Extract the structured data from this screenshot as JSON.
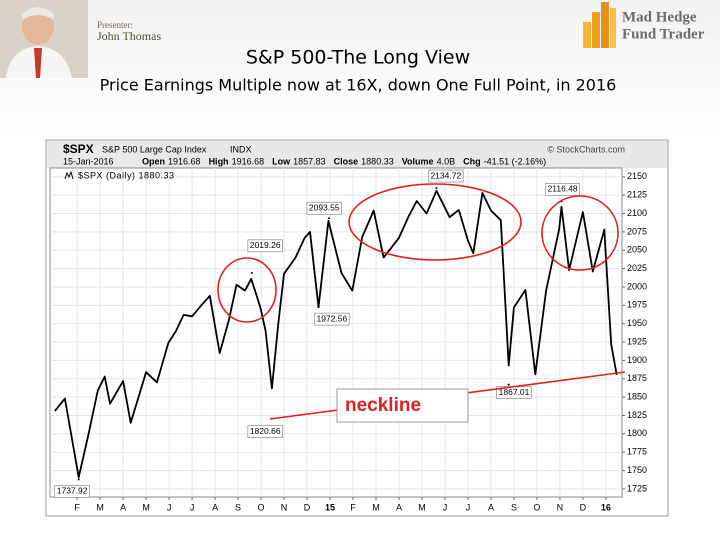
{
  "slide": {
    "presenter_label": "Presenter:",
    "presenter_name": "John Thomas",
    "logo_line1": "Mad Hedge",
    "logo_line2": "Fund Trader",
    "title": "S&P 500-The Long View",
    "subtitle": "Price Earnings Multiple now at 16X, down One Full Point, in 2016",
    "callout": "neckline"
  },
  "chart_data": {
    "type": "line",
    "symbol": "$SPX",
    "name": "S&P 500 Large Cap Index",
    "exchange": "INDX",
    "source": "© StockCharts.com",
    "date": "15-Jan-2016",
    "quote": [
      {
        "label": "Open",
        "value": "1916.68"
      },
      {
        "label": "High",
        "value": "1916.68"
      },
      {
        "label": "Low",
        "value": "1857.83"
      },
      {
        "label": "Close",
        "value": "1880.33"
      },
      {
        "label": "Volume",
        "value": "4.0B"
      },
      {
        "label": "Chg",
        "value": "-41.51 (-2.16%)"
      }
    ],
    "series": [
      {
        "name": "$SPX (Daily) 1880.33",
        "color": "#000000",
        "x": [
          0.03,
          0.47,
          1.07,
          1.5,
          1.9,
          2.2,
          2.43,
          3.0,
          3.33,
          4.0,
          4.47,
          4.97,
          5.3,
          5.63,
          6.0,
          6.4,
          6.77,
          7.2,
          7.6,
          7.93,
          8.3,
          8.57,
          8.97,
          9.2,
          9.47,
          9.75,
          10.0,
          10.5,
          10.9,
          11.13,
          11.5,
          11.93,
          12.5,
          12.97,
          13.4,
          13.9,
          14.33,
          15.0,
          15.4,
          15.77,
          16.2,
          16.63,
          17.2,
          17.6,
          18.0,
          18.23,
          18.63,
          19.0,
          19.43,
          19.77,
          20.0,
          20.5,
          20.93,
          21.4,
          21.97,
          22.07,
          22.4,
          23.0,
          23.43,
          23.93,
          24.23,
          24.47
        ],
        "values": [
          1831,
          1848,
          1741,
          1800,
          1859,
          1878,
          1841,
          1872,
          1815,
          1884,
          1870,
          1924,
          1940,
          1962,
          1960,
          1975,
          1988,
          1910,
          1955,
          2003,
          1995,
          2011,
          1972,
          1940,
          1862,
          1950,
          2018,
          2040,
          2067,
          2075,
          1972.56,
          2090,
          2019,
          1995,
          2068,
          2104,
          2040,
          2067,
          2095,
          2117,
          2100,
          2131,
          2095,
          2105,
          2063,
          2046,
          2128,
          2104,
          2091,
          1893,
          1972,
          1996,
          1881,
          1995,
          2079,
          2109,
          2023,
          2102,
          2021,
          2078,
          1922,
          1880.33
        ]
      }
    ],
    "annotations": [
      {
        "x": 1.07,
        "value": 1737.92
      },
      {
        "x": 9.47,
        "value": 1820.66
      },
      {
        "x": 8.6,
        "value": 2019.26
      },
      {
        "x": 11.5,
        "value": 1972.56
      },
      {
        "x": 11.95,
        "value": 2093.55
      },
      {
        "x": 16.63,
        "value": 2134.72
      },
      {
        "x": 22.07,
        "value": 2116.48
      },
      {
        "x": 19.77,
        "value": 1867.01
      }
    ],
    "xlim": [
      -0.18,
      24.7
    ],
    "xticks": [
      {
        "value": 1,
        "label": "F"
      },
      {
        "value": 2,
        "label": "M"
      },
      {
        "value": 3,
        "label": "A"
      },
      {
        "value": 4,
        "label": "M"
      },
      {
        "value": 5,
        "label": "J"
      },
      {
        "value": 6,
        "label": "J"
      },
      {
        "value": 7,
        "label": "A"
      },
      {
        "value": 8,
        "label": "S"
      },
      {
        "value": 9,
        "label": "O"
      },
      {
        "value": 10,
        "label": "N"
      },
      {
        "value": 11,
        "label": "D"
      },
      {
        "value": 12,
        "label": "15"
      },
      {
        "value": 13,
        "label": "F"
      },
      {
        "value": 14,
        "label": "M"
      },
      {
        "value": 15,
        "label": "A"
      },
      {
        "value": 16,
        "label": "M"
      },
      {
        "value": 17,
        "label": "J"
      },
      {
        "value": 18,
        "label": "J"
      },
      {
        "value": 19,
        "label": "A"
      },
      {
        "value": 20,
        "label": "S"
      },
      {
        "value": 21,
        "label": "O"
      },
      {
        "value": 22,
        "label": "N"
      },
      {
        "value": 23,
        "label": "D"
      },
      {
        "value": 24,
        "label": "16"
      }
    ],
    "ylim": [
      1714,
      2162
    ],
    "yticks": [
      1725,
      1750,
      1775,
      1800,
      1825,
      1850,
      1875,
      1900,
      1925,
      1950,
      1975,
      2000,
      2025,
      2050,
      2075,
      2100,
      2125,
      2150
    ],
    "grid": true,
    "y_axis_side": "right"
  }
}
